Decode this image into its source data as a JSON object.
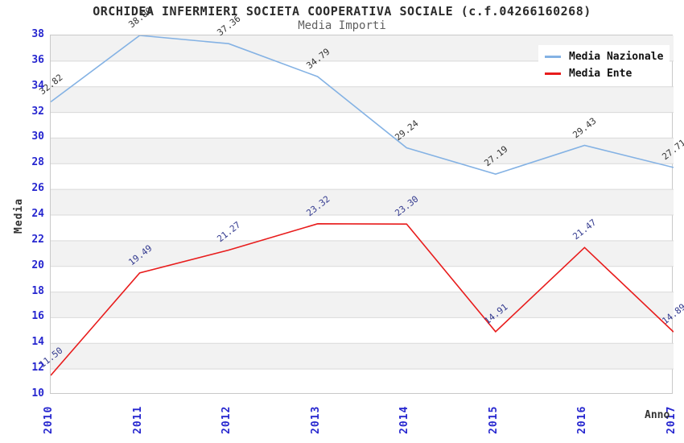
{
  "header": {
    "title": "ORCHIDEA INFERMIERI SOCIETA COOPERATIVA SOCIALE (c.f.04266160268)",
    "subtitle": "Media Importi"
  },
  "axes": {
    "y_title": "Media",
    "x_title": "Anno",
    "y_ticks": [
      38,
      36,
      34,
      32,
      30,
      28,
      26,
      24,
      22,
      20,
      18,
      16,
      14,
      12,
      10
    ],
    "x_ticks": [
      "2010",
      "2011",
      "2012",
      "2013",
      "2014",
      "2015",
      "2016",
      "2017"
    ]
  },
  "legend": {
    "position": "top-right",
    "items": [
      {
        "label": "Media Nazionale",
        "color": "#84b2e4"
      },
      {
        "label": "Media Ente",
        "color": "#e81c1c"
      }
    ]
  },
  "colors": {
    "tick_label": "#2626cf",
    "band_gray": "#f2f2f2",
    "band_white": "#ffffff",
    "gridline": "#d9d9d9",
    "plot_border": "#c9c9c9",
    "nazionale_line": "#84b2e4",
    "ente_line": "#e81c1c",
    "nazionale_point_label": "#333333",
    "ente_point_label": "#333a8f"
  },
  "chart_data": {
    "type": "line",
    "title": "ORCHIDEA INFERMIERI SOCIETA COOPERATIVA SOCIALE (c.f.04266160268)",
    "subtitle": "Media Importi",
    "xlabel": "Anno",
    "ylabel": "Media",
    "categories": [
      2010,
      2011,
      2012,
      2013,
      2014,
      2015,
      2016,
      2017
    ],
    "ylim": [
      10,
      38
    ],
    "y_tick_step": 2,
    "grid": "horizontal-bands-alternating",
    "legend_position": "top-right",
    "series": [
      {
        "name": "Media Nazionale",
        "color": "#84b2e4",
        "label_color": "#333333",
        "values": [
          32.82,
          38.0,
          37.36,
          34.79,
          29.24,
          27.19,
          29.43,
          27.71
        ],
        "labels": [
          "32.82",
          "38.00",
          "37.36",
          "34.79",
          "29.24",
          "27.19",
          "29.43",
          "27.71"
        ]
      },
      {
        "name": "Media Ente",
        "color": "#e81c1c",
        "label_color": "#333a8f",
        "values": [
          11.5,
          19.49,
          21.27,
          23.32,
          23.3,
          14.91,
          21.47,
          14.89
        ],
        "labels": [
          "11.50",
          "19.49",
          "21.27",
          "23.32",
          "23.30",
          "14.91",
          "21.47",
          "14.89"
        ]
      }
    ]
  }
}
